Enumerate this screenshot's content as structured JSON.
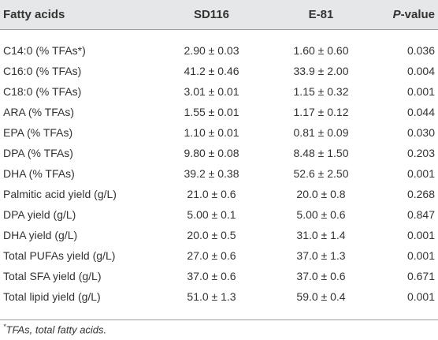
{
  "table": {
    "headers": {
      "col1": "Fatty acids",
      "col2": "SD116",
      "col3": "E-81",
      "col4_italic": "P",
      "col4_rest": "-value"
    },
    "rows": [
      {
        "label": "C14:0 (% TFAs*)",
        "sd116": "2.90 ± 0.03",
        "e81": "1.60 ± 0.60",
        "p": "0.036"
      },
      {
        "label": "C16:0 (% TFAs)",
        "sd116": "41.2 ± 0.46",
        "e81": "33.9 ± 2.00",
        "p": "0.004"
      },
      {
        "label": "C18:0 (% TFAs)",
        "sd116": "3.01 ± 0.01",
        "e81": "1.15 ± 0.32",
        "p": "0.001"
      },
      {
        "label": "ARA (% TFAs)",
        "sd116": "1.55 ± 0.01",
        "e81": "1.17 ± 0.12",
        "p": "0.044"
      },
      {
        "label": "EPA (% TFAs)",
        "sd116": "1.10 ± 0.01",
        "e81": "0.81 ± 0.09",
        "p": "0.030"
      },
      {
        "label": "DPA (% TFAs)",
        "sd116": "9.80 ± 0.08",
        "e81": "8.48 ± 1.50",
        "p": "0.203"
      },
      {
        "label": "DHA (% TFAs)",
        "sd116": "39.2 ± 0.38",
        "e81": "52.6 ± 2.50",
        "p": "0.001"
      },
      {
        "label": "Palmitic acid yield (g/L)",
        "sd116": "21.0 ± 0.6",
        "e81": "20.0 ± 0.8",
        "p": "0.268"
      },
      {
        "label": "DPA yield (g/L)",
        "sd116": "5.00 ± 0.1",
        "e81": "5.00 ± 0.6",
        "p": "0.847"
      },
      {
        "label": "DHA yield (g/L)",
        "sd116": "20.0 ± 0.5",
        "e81": "31.0 ± 1.4",
        "p": "0.001"
      },
      {
        "label": "Total PUFAs yield (g/L)",
        "sd116": "27.0 ± 0.6",
        "e81": "37.0 ± 1.3",
        "p": "0.001"
      },
      {
        "label": "Total SFA yield (g/L)",
        "sd116": "37.0 ± 0.6",
        "e81": "37.0 ± 0.6",
        "p": "0.671"
      },
      {
        "label": "Total lipid yield (g/L)",
        "sd116": "51.0 ± 1.3",
        "e81": "59.0 ± 0.4",
        "p": "0.001"
      }
    ],
    "footnote": {
      "marker": "*",
      "text": "TFAs, total fatty acids."
    }
  }
}
